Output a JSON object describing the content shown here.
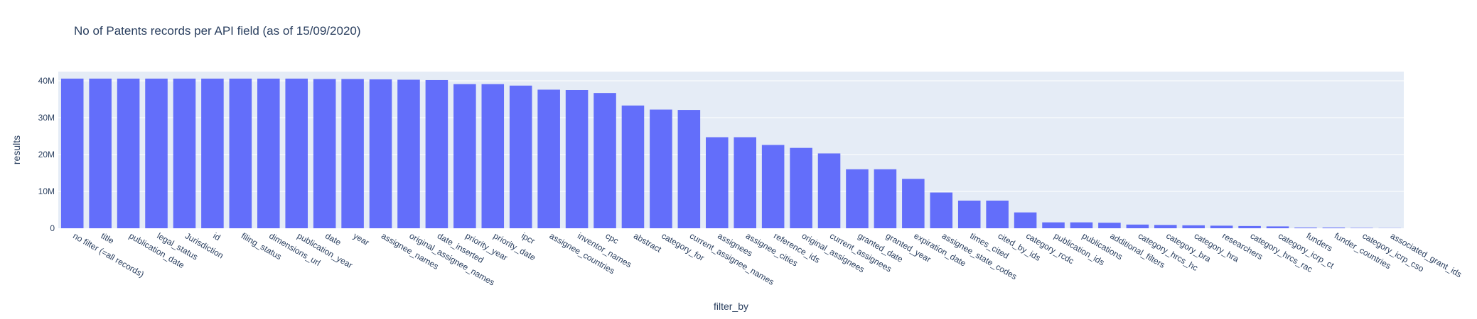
{
  "chart_data": {
    "type": "bar",
    "title": "No of Patents records per API field (as of 15/09/2020)",
    "xlabel": "filter_by",
    "ylabel": "results",
    "ylim": [
      0,
      42500000
    ],
    "yticks": [
      0,
      10000000,
      20000000,
      30000000,
      40000000
    ],
    "ytick_labels": [
      "0",
      "10M",
      "20M",
      "30M",
      "40M"
    ],
    "grid": true,
    "colors": {
      "bar": "#636efa",
      "plot_bg": "#e5ecf6",
      "grid": "#ffffff",
      "text": "#2a3f5f"
    },
    "categories": [
      "no filter (=all records)",
      "title",
      "publication_date",
      "legal_status",
      "Jurisdiction",
      "id",
      "filing_status",
      "dimensions_url",
      "publication_year",
      "date",
      "year",
      "assignee_names",
      "original_assignee_names",
      "date_inserted",
      "priority_year",
      "priority_date",
      "ipcr",
      "assignee_countries",
      "inventor_names",
      "cpc",
      "abstract",
      "category_for",
      "current_assignee_names",
      "assignees",
      "assignee_cities",
      "reference_ids",
      "original_assignees",
      "current_assignees",
      "granted_date",
      "granted_year",
      "expiration_date",
      "assignee_state_codes",
      "times_cited",
      "cited_by_ids",
      "category_rcdc",
      "publication_ids",
      "publications",
      "additional_filters",
      "category_hrcs_hc",
      "category_bra",
      "category_hra",
      "researchers",
      "category_hrcs_rac",
      "category_icrp_ct",
      "funders",
      "funder_countries",
      "category_icrp_cso",
      "associated_grant_ids"
    ],
    "values": [
      40600000,
      40600000,
      40600000,
      40600000,
      40600000,
      40600000,
      40600000,
      40600000,
      40600000,
      40500000,
      40500000,
      40400000,
      40300000,
      40200000,
      39100000,
      39100000,
      38700000,
      37600000,
      37500000,
      36700000,
      33300000,
      32200000,
      32100000,
      24700000,
      24700000,
      22600000,
      21800000,
      20300000,
      16000000,
      16000000,
      13400000,
      9700000,
      7500000,
      7500000,
      4300000,
      1600000,
      1600000,
      1500000,
      1000000,
      900000,
      800000,
      700000,
      600000,
      500000,
      200000,
      200000,
      100000,
      50000
    ]
  }
}
